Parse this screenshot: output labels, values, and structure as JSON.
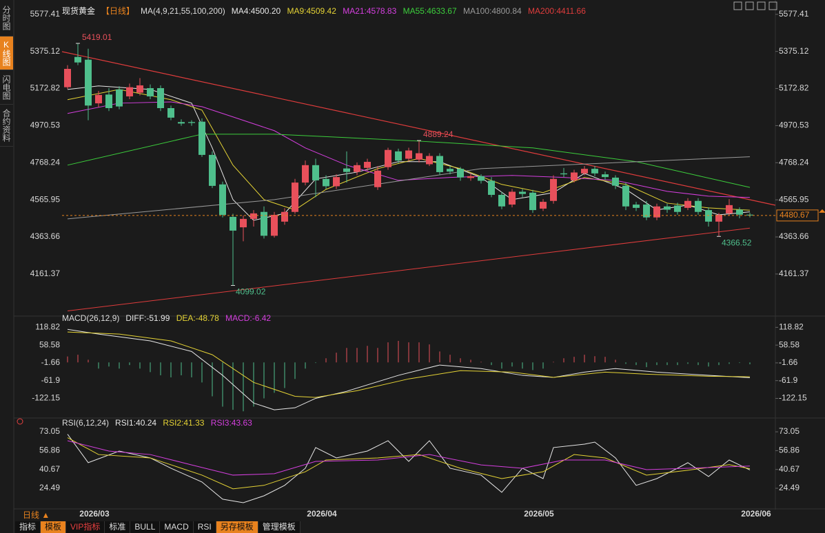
{
  "sidebar": [
    "分时图",
    "K线图",
    "闪电图",
    "合约资料"
  ],
  "symbol": "现货黄金",
  "period": "【日线】",
  "period_selector": "日线 ▲",
  "date_labels": [
    "2026/03",
    "2026/04",
    "2026/05",
    "2026/06"
  ],
  "toolbar": [
    "指标",
    "模板",
    "VIP指标",
    "标准",
    "BULL",
    "MACD",
    "RSI",
    "另存模板",
    "管理模板"
  ],
  "chart_data": [
    {
      "type": "candlestick",
      "legend_title": "MA(4,9,21,55,100,200)",
      "up_color": "#e8505b",
      "down_color": "#4fbf8c",
      "last_price_color": "#e8821e",
      "ylim": [
        3947,
        5618
      ],
      "yticks": [
        5577.41,
        5375.12,
        5172.82,
        4970.53,
        4768.24,
        4565.95,
        4363.66,
        4161.37
      ],
      "open": [
        5180,
        5345,
        5330,
        5092,
        5140,
        5168,
        5130,
        5150,
        5175,
        5175,
        5066,
        4990,
        4990,
        4992,
        4811,
        4650,
        4473,
        4416,
        4462,
        4500,
        4370,
        4447,
        4500,
        4660,
        4755,
        4680,
        4640,
        4737,
        4718,
        4740,
        4635,
        4744,
        4830,
        4790,
        4785,
        4760,
        4805,
        4735,
        4735,
        4685,
        4695,
        4670,
        4593,
        4540,
        4610,
        4605,
        4518,
        4560,
        4710,
        4672,
        4710,
        4735,
        4705,
        4687,
        4643,
        4540,
        4540,
        4470,
        4530,
        4535,
        4522,
        4560,
        4510,
        4447,
        4492,
        4512,
        4485
      ],
      "high": [
        5300,
        5419.01,
        5390,
        5160,
        5175,
        5185,
        5200,
        5230,
        5195,
        5190,
        5080,
        5005,
        5000,
        5010,
        4830,
        4665,
        4490,
        4480,
        4510,
        4530,
        4500,
        4520,
        4680,
        4780,
        4790,
        4700,
        4705,
        4830,
        4770,
        4790,
        4750,
        4850,
        4845,
        4850,
        4889.24,
        4820,
        4820,
        4750,
        4745,
        4710,
        4705,
        4690,
        4610,
        4625,
        4625,
        4620,
        4570,
        4700,
        4740,
        4730,
        4750,
        4750,
        4720,
        4700,
        4660,
        4555,
        4560,
        4545,
        4545,
        4550,
        4575,
        4575,
        4525,
        4495,
        4570,
        4525,
        4495
      ],
      "low": [
        5170,
        5300,
        5000,
        5070,
        5050,
        5060,
        5115,
        5135,
        5115,
        5050,
        5000,
        4970,
        4970,
        4800,
        4630,
        4470,
        4099.02,
        4340,
        4420,
        4355,
        4360,
        4430,
        4490,
        4645,
        4580,
        4625,
        4625,
        4660,
        4700,
        4725,
        4620,
        4730,
        4765,
        4775,
        4770,
        4750,
        4700,
        4705,
        4670,
        4670,
        4655,
        4580,
        4515,
        4525,
        4580,
        4495,
        4505,
        4545,
        4690,
        4660,
        4700,
        4695,
        4675,
        4625,
        4510,
        4505,
        4455,
        4455,
        4495,
        4485,
        4510,
        4485,
        4420,
        4366.52,
        4480,
        4465,
        4470
      ],
      "close": [
        5280,
        5315,
        5080,
        5138,
        5066,
        5075,
        5180,
        5190,
        5130,
        5066,
        5014,
        4982,
        4985,
        4811,
        4642,
        4484,
        4398,
        4462,
        4492,
        4370,
        4484,
        4500,
        4660,
        4755,
        4672,
        4640,
        4690,
        4718,
        4755,
        4773,
        4725,
        4838,
        4780,
        4835,
        4820,
        4805,
        4717,
        4720,
        4688,
        4695,
        4670,
        4593,
        4530,
        4610,
        4598,
        4510,
        4555,
        4680,
        4705,
        4715,
        4735,
        4710,
        4690,
        4643,
        4530,
        4522,
        4470,
        4530,
        4512,
        4500,
        4560,
        4500,
        4447,
        4484,
        4537,
        4485,
        4480.67
      ],
      "series": [
        {
          "name": "MA4:4500.20",
          "color": "#e8e8e8",
          "x": [
            0,
            3,
            8,
            12,
            14,
            16,
            18,
            21,
            24,
            28,
            32,
            36,
            40,
            43,
            47,
            50,
            54,
            57,
            60,
            63,
            66
          ],
          "values": [
            5168,
            5187,
            5168,
            5093,
            4849,
            4567,
            4454,
            4492,
            4680,
            4717,
            4774,
            4774,
            4688,
            4567,
            4605,
            4710,
            4623,
            4511,
            4537,
            4484,
            4500.2
          ]
        },
        {
          "name": "MA9:4509.42",
          "color": "#e6d435",
          "x": [
            0,
            5,
            10,
            13,
            16,
            19,
            22,
            25,
            30,
            34,
            38,
            42,
            46,
            50,
            54,
            58,
            62,
            66
          ],
          "values": [
            5112,
            5168,
            5112,
            5055,
            4755,
            4567,
            4511,
            4623,
            4736,
            4792,
            4736,
            4650,
            4605,
            4688,
            4650,
            4548,
            4522,
            4509.42
          ]
        },
        {
          "name": "MA21:4578.83",
          "color": "#d63fe0",
          "x": [
            0,
            5,
            10,
            13,
            16,
            20,
            23,
            27,
            32,
            37,
            43,
            48,
            53,
            58,
            62,
            66
          ],
          "values": [
            5037,
            5093,
            5100,
            5074,
            5018,
            4943,
            4849,
            4755,
            4672,
            4688,
            4699,
            4688,
            4672,
            4612,
            4586,
            4578.83
          ]
        },
        {
          "name": "MA55:4633.67",
          "color": "#3ccf3c",
          "x": [
            0,
            13,
            20,
            34,
            45,
            55,
            66
          ],
          "values": [
            4755,
            4924,
            4924,
            4886,
            4849,
            4774,
            4633.67
          ]
        },
        {
          "name": "MA100:4800.84",
          "color": "#9a9a9a",
          "x": [
            0,
            20,
            40,
            66
          ],
          "values": [
            4462,
            4567,
            4736,
            4800.84
          ]
        },
        {
          "name": "MA200:4411.66",
          "color": "#e03c3c",
          "x": [
            0,
            66
          ],
          "values": [
            3960,
            4411.66
          ]
        }
      ]
    },
    {
      "type": "macd",
      "title": "MACD(26,12,9)",
      "ylim": [
        -184,
        143
      ],
      "yticks": [
        118.82,
        58.58,
        -1.66,
        -61.9,
        -122.15
      ],
      "up_color": "#e8505b",
      "down_color": "#4fbf8c",
      "histogram_name": "MACD:-6.42",
      "histogram_name_color": "#d63fe0",
      "histogram": [
        20,
        26,
        9,
        -21,
        -14,
        -21,
        -9,
        -21,
        -33,
        -44,
        -51,
        -44,
        -51,
        -68,
        -115,
        -150,
        -161,
        -166,
        -150,
        -122,
        -103,
        -87,
        -56,
        -21,
        -2,
        14,
        33,
        49,
        49,
        56,
        49,
        68,
        73,
        68,
        68,
        61,
        37,
        26,
        14,
        9,
        2,
        -9,
        -21,
        -14,
        -21,
        -26,
        -21,
        2,
        14,
        19,
        26,
        21,
        19,
        9,
        -5,
        -9,
        -16,
        -9,
        -9,
        -9,
        -5,
        -9,
        -14,
        -9,
        -5,
        -2,
        -6.42
      ],
      "series": [
        {
          "name": "DIFF:-51.99",
          "color": "#e8e8e8",
          "x": [
            0,
            3,
            8,
            12,
            15,
            18,
            20,
            22,
            24,
            27,
            32,
            36,
            40,
            44,
            47,
            50,
            53,
            57,
            62,
            66
          ],
          "values": [
            112,
            96,
            73,
            37,
            -44,
            -138,
            -161,
            -154,
            -122,
            -98,
            -44,
            -9,
            -21,
            -44,
            -51,
            -33,
            -21,
            -33,
            -44,
            -51.99
          ]
        },
        {
          "name": "DEA:-48.78",
          "color": "#e6d435",
          "x": [
            0,
            5,
            10,
            14,
            18,
            22,
            24,
            28,
            33,
            38,
            43,
            47,
            52,
            56,
            62,
            66
          ],
          "values": [
            103,
            96,
            73,
            26,
            -68,
            -115,
            -119,
            -96,
            -56,
            -28,
            -33,
            -51,
            -33,
            -40,
            -47,
            -48.78
          ]
        }
      ]
    },
    {
      "type": "rsi",
      "title": "RSI(6,12,24)",
      "ylim": [
        9.1,
        80.2
      ],
      "yticks": [
        73.05,
        56.86,
        40.67,
        24.49
      ],
      "series": [
        {
          "name": "RSI1:40.24",
          "color": "#e8e8e8",
          "x": [
            0,
            2,
            5,
            8,
            10,
            13,
            15,
            17,
            19,
            21,
            23,
            24,
            26,
            29,
            31,
            33,
            35,
            37,
            40,
            42,
            44,
            46,
            47,
            50,
            51,
            53,
            55,
            57,
            59,
            60,
            62,
            64,
            66
          ],
          "values": [
            71,
            46.5,
            56.5,
            50.6,
            41.7,
            29.9,
            15.1,
            12.1,
            18,
            27,
            41.7,
            59.5,
            50.6,
            56.5,
            65.4,
            47.6,
            65.4,
            41.7,
            35.8,
            21,
            41.7,
            32.8,
            59.5,
            62.4,
            64.2,
            50.6,
            27,
            32.8,
            41.7,
            46.5,
            34.6,
            48.8,
            40.24
          ]
        },
        {
          "name": "RSI2:41.33",
          "color": "#e6d435",
          "x": [
            0,
            3,
            8,
            13,
            16,
            19,
            23,
            25,
            30,
            34,
            38,
            42,
            46,
            49,
            52,
            56,
            60,
            64,
            66
          ],
          "values": [
            68,
            53.5,
            50.6,
            35.8,
            24,
            27,
            38.7,
            48.8,
            50.6,
            53.5,
            41.7,
            32.8,
            38.7,
            53.5,
            50.6,
            35.8,
            40,
            44.8,
            41.33
          ]
        },
        {
          "name": "RSI3:43.63",
          "color": "#d63fe0",
          "x": [
            0,
            4,
            8,
            12,
            16,
            20,
            24,
            30,
            35,
            40,
            44,
            48,
            52,
            56,
            60,
            66
          ],
          "values": [
            65.4,
            56.5,
            53.5,
            44.6,
            35.8,
            37,
            47.6,
            48.8,
            53.5,
            44.6,
            41.7,
            48.8,
            48.8,
            40.5,
            41.7,
            43.63
          ]
        }
      ]
    }
  ]
}
